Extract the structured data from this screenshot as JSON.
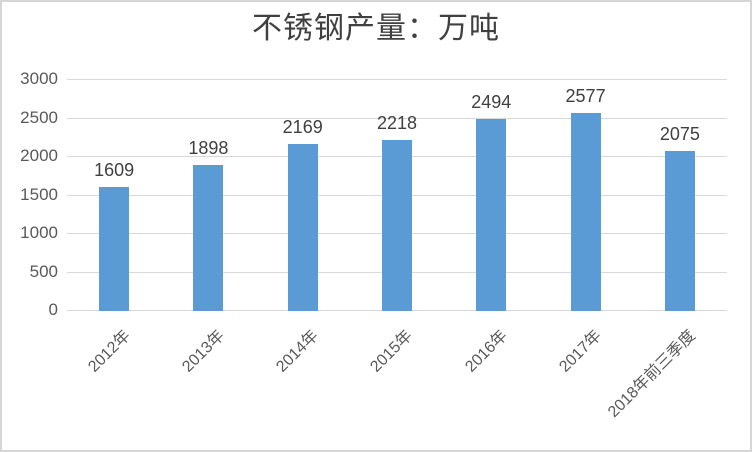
{
  "chart_data": {
    "type": "bar",
    "title": "不锈钢产量：万吨",
    "categories": [
      "2012年",
      "2013年",
      "2014年",
      "2015年",
      "2016年",
      "2017年",
      "2018年前三季度"
    ],
    "values": [
      1609,
      1898,
      2169,
      2218,
      2494,
      2577,
      2075
    ],
    "value_labels_shown": true,
    "xlabel": "",
    "ylabel": "",
    "ylim": [
      0,
      3000
    ],
    "y_ticks": [
      0,
      500,
      1000,
      1500,
      2000,
      2500,
      3000
    ],
    "grid": "horizontal",
    "legend": "none",
    "colors": {
      "bar": "#5B9BD5",
      "gridline": "#D9D9D9",
      "axis_line": "#D9D9D9",
      "tick_label": "#595959",
      "category_label": "#595959",
      "value_label": "#404040",
      "title": "#404040",
      "frame_border": "#D6D6D6",
      "background": "#FFFFFF"
    }
  }
}
